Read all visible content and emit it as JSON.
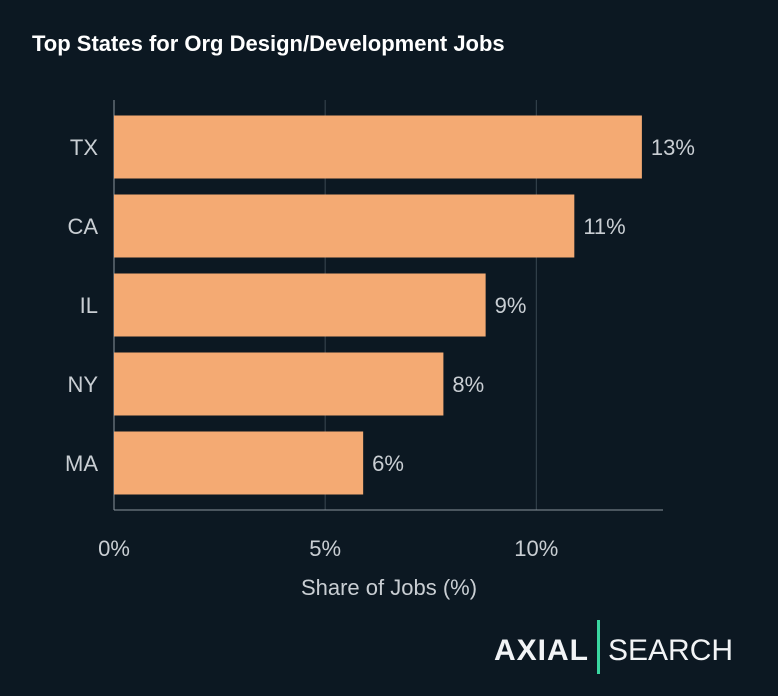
{
  "chart_data": {
    "type": "bar",
    "orientation": "horizontal",
    "title": "Top States for Org Design/Development Jobs",
    "xlabel": "Share of Jobs (%)",
    "ylabel": "",
    "categories": [
      "TX",
      "CA",
      "IL",
      "NY",
      "MA"
    ],
    "values": [
      12.5,
      10.9,
      8.8,
      7.8,
      5.9
    ],
    "data_labels": [
      "13%",
      "11%",
      "9%",
      "8%",
      "6%"
    ],
    "xticks": [
      0,
      5,
      10
    ],
    "xtick_labels": [
      "0%",
      "5%",
      "10%"
    ],
    "xlim": [
      0,
      13
    ],
    "grid": "vertical",
    "bar_color": "#f4aa73"
  },
  "logo": {
    "brand": "AXIAL",
    "product": "SEARCH",
    "divider_color": "#3ad6a0"
  }
}
